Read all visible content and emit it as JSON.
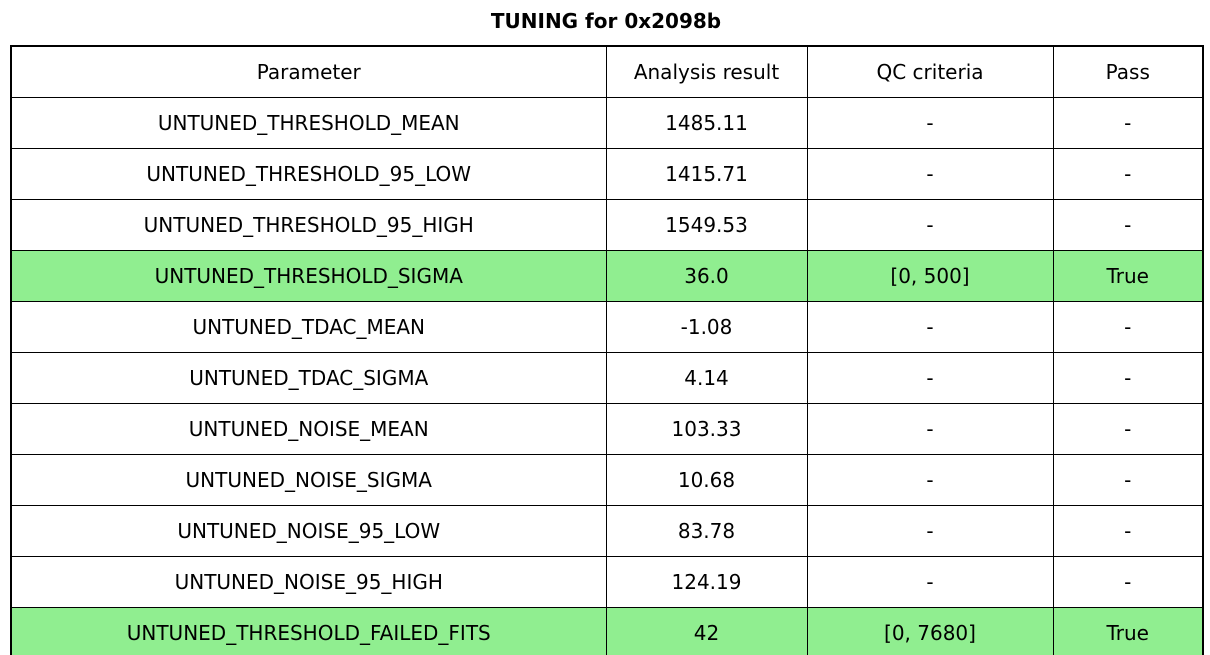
{
  "title": "TUNING for 0x2098b",
  "colors": {
    "highlight_green": "#90EE90",
    "border": "#000000",
    "background": "#FFFFFF",
    "text": "#000000"
  },
  "chart_data": {
    "type": "table",
    "title": "TUNING for 0x2098b",
    "columns": [
      "Parameter",
      "Analysis result",
      "QC criteria",
      "Pass"
    ],
    "rows": [
      {
        "parameter": "UNTUNED_THRESHOLD_MEAN",
        "analysis_result": "1485.11",
        "qc_criteria": "-",
        "pass": "-",
        "highlighted": false
      },
      {
        "parameter": "UNTUNED_THRESHOLD_95_LOW",
        "analysis_result": "1415.71",
        "qc_criteria": "-",
        "pass": "-",
        "highlighted": false
      },
      {
        "parameter": "UNTUNED_THRESHOLD_95_HIGH",
        "analysis_result": "1549.53",
        "qc_criteria": "-",
        "pass": "-",
        "highlighted": false
      },
      {
        "parameter": "UNTUNED_THRESHOLD_SIGMA",
        "analysis_result": "36.0",
        "qc_criteria": "[0, 500]",
        "pass": "True",
        "highlighted": true
      },
      {
        "parameter": "UNTUNED_TDAC_MEAN",
        "analysis_result": "-1.08",
        "qc_criteria": "-",
        "pass": "-",
        "highlighted": false
      },
      {
        "parameter": "UNTUNED_TDAC_SIGMA",
        "analysis_result": "4.14",
        "qc_criteria": "-",
        "pass": "-",
        "highlighted": false
      },
      {
        "parameter": "UNTUNED_NOISE_MEAN",
        "analysis_result": "103.33",
        "qc_criteria": "-",
        "pass": "-",
        "highlighted": false
      },
      {
        "parameter": "UNTUNED_NOISE_SIGMA",
        "analysis_result": "10.68",
        "qc_criteria": "-",
        "pass": "-",
        "highlighted": false
      },
      {
        "parameter": "UNTUNED_NOISE_95_LOW",
        "analysis_result": "83.78",
        "qc_criteria": "-",
        "pass": "-",
        "highlighted": false
      },
      {
        "parameter": "UNTUNED_NOISE_95_HIGH",
        "analysis_result": "124.19",
        "qc_criteria": "-",
        "pass": "-",
        "highlighted": false
      },
      {
        "parameter": "UNTUNED_THRESHOLD_FAILED_FITS",
        "analysis_result": "42",
        "qc_criteria": "[0, 7680]",
        "pass": "True",
        "highlighted": true
      }
    ],
    "highlight_color": "#90EE90",
    "legend": "none",
    "grid": "all-cell-borders"
  }
}
